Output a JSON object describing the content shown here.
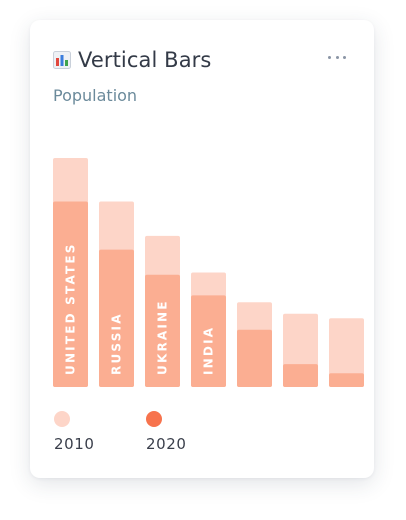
{
  "card": {
    "title": "Vertical Bars",
    "icon": "bar-chart-icon",
    "subtitle": "Population",
    "menu_icon": "more-horizontal-icon"
  },
  "colors": {
    "series_2010": "#fdd5c8",
    "series_2020": "#fbae92",
    "legend_2020": "#f7734d",
    "bar_label": "#ffffff"
  },
  "legend": {
    "items": [
      {
        "label": "2010"
      },
      {
        "label": "2020"
      }
    ]
  },
  "chart_data": {
    "type": "bar",
    "layout": "overlapping",
    "title": "",
    "categories": [
      "UNITED STATES",
      "RUSSIA",
      "UKRAINE",
      "INDIA",
      "",
      "",
      ""
    ],
    "series": [
      {
        "name": "2010",
        "values": [
          100,
          81,
          66,
          50,
          37,
          32,
          30
        ]
      },
      {
        "name": "2020",
        "values": [
          81,
          60,
          49,
          40,
          25,
          10,
          6
        ]
      }
    ],
    "ylim": [
      0,
      100
    ],
    "grid": false,
    "legend": "bottom-left"
  }
}
